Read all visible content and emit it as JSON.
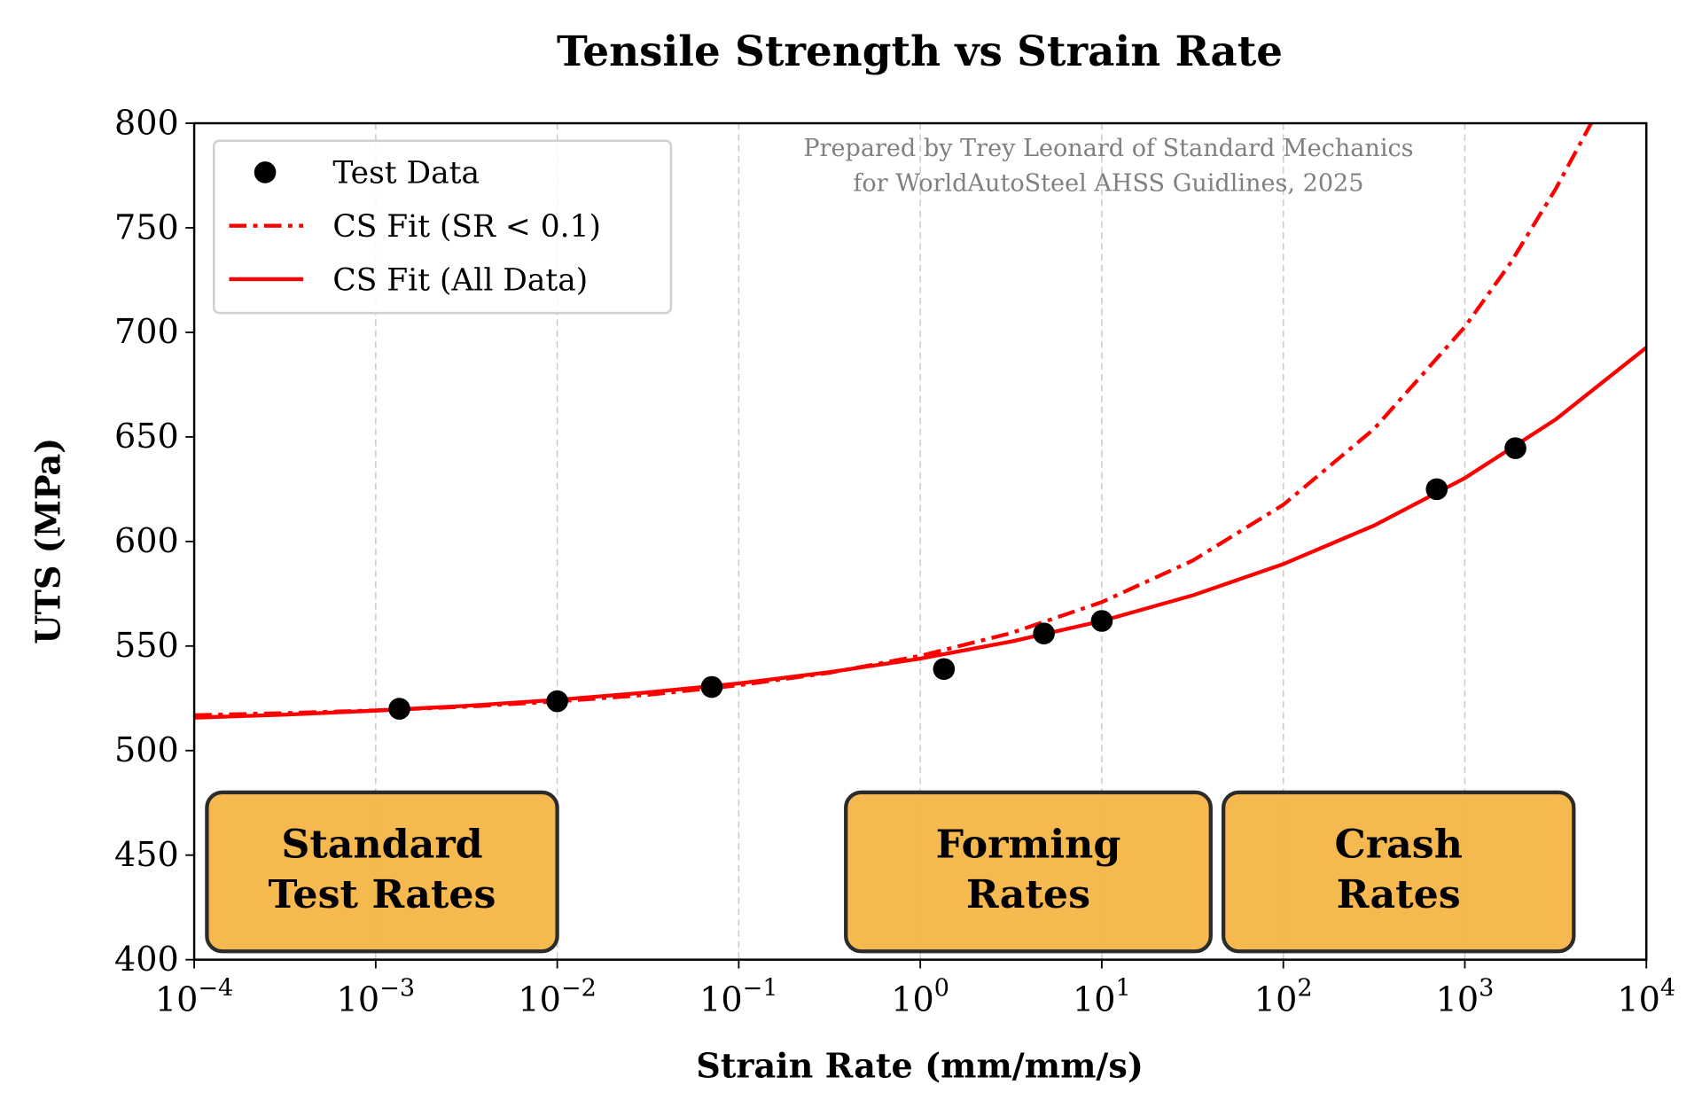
{
  "chart_data": {
    "type": "scatter",
    "title": "Tensile Strength vs Strain Rate",
    "xlabel": "Strain Rate (mm/mm/s)",
    "ylabel": "UTS (MPa)",
    "xscale": "log",
    "xlim": [
      0.0001,
      10000
    ],
    "ylim": [
      400,
      800
    ],
    "grid": "vertical dashed at each decade",
    "x_ticks": [
      {
        "base": "10",
        "exp": "−4"
      },
      {
        "base": "10",
        "exp": "−3"
      },
      {
        "base": "10",
        "exp": "−2"
      },
      {
        "base": "10",
        "exp": "−1"
      },
      {
        "base": "10",
        "exp": "0"
      },
      {
        "base": "10",
        "exp": "1"
      },
      {
        "base": "10",
        "exp": "2"
      },
      {
        "base": "10",
        "exp": "3"
      },
      {
        "base": "10",
        "exp": "4"
      }
    ],
    "y_ticks": [
      "400",
      "450",
      "500",
      "550",
      "600",
      "650",
      "700",
      "750",
      "800"
    ],
    "legend_position": "top-left",
    "annotation": [
      "Prepared by Trey Leonard of Standard Mechanics",
      "for WorldAutoSteel AHSS Guidlines, 2025"
    ],
    "series": [
      {
        "name": "Test Data",
        "kind": "scatter",
        "color": "#000000",
        "x": [
          0.00135,
          0.01,
          0.071,
          1.35,
          4.8,
          10,
          700,
          1900
        ],
        "y": [
          520,
          523.6,
          530.4,
          539,
          556,
          562,
          625,
          644.6
        ]
      },
      {
        "name": "CS Fit (SR < 0.1)",
        "kind": "line",
        "style": "dash-dot",
        "color": "#ff0000",
        "log10_x": [
          -4,
          -3.5,
          -3,
          -2.5,
          -2,
          -1.5,
          -1,
          -0.5,
          0,
          0.5,
          1,
          1.5,
          2,
          2.5,
          3,
          3.25,
          3.5,
          3.7
        ],
        "y": [
          516.9,
          517.9,
          519.2,
          521,
          523.5,
          526.7,
          531.2,
          537.2,
          545.3,
          556.2,
          571,
          590.8,
          617.6,
          653.8,
          702.6,
          733,
          768.5,
          800.7
        ]
      },
      {
        "name": "CS Fit (All Data)",
        "kind": "line",
        "style": "solid",
        "color": "#ff0000",
        "log10_x": [
          -4,
          -3.5,
          -3,
          -2.5,
          -2,
          -1.5,
          -1,
          -0.5,
          0,
          0.5,
          1,
          1.5,
          2,
          2.5,
          3,
          3.5,
          4
        ],
        "y": [
          515.7,
          517.2,
          519.1,
          521.4,
          524.3,
          527.8,
          532.1,
          537.5,
          544,
          552.1,
          562,
          574.2,
          589.2,
          607.6,
          630.3,
          658.3,
          692.7
        ]
      }
    ],
    "regions": [
      {
        "lines": [
          "Standard",
          "Test Rates"
        ],
        "fill": "#f5b547"
      },
      {
        "lines": [
          "Forming",
          "Rates"
        ],
        "fill": "#f5b547"
      },
      {
        "lines": [
          "Crash",
          "Rates"
        ],
        "fill": "#f5b547"
      }
    ]
  }
}
